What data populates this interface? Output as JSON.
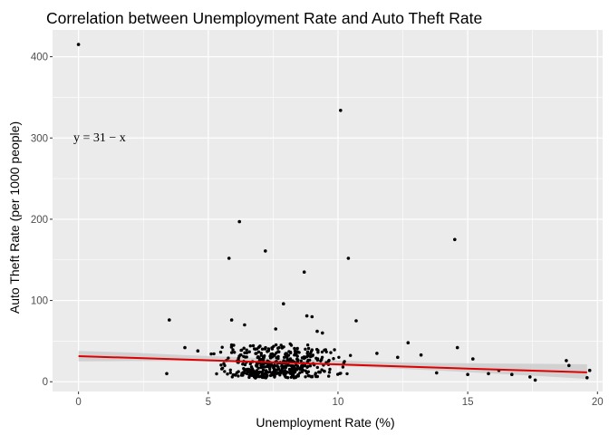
{
  "chart_data": {
    "type": "scatter",
    "title": "Correlation between Unemployment Rate and Auto Theft Rate",
    "xlabel": "Unemployment Rate (%)",
    "ylabel": "Auto Theft Rate (per 1000 people)",
    "xlim": [
      -1,
      20.2
    ],
    "ylim": [
      -12,
      433
    ],
    "x_ticks": [
      0,
      5,
      10,
      15,
      20
    ],
    "y_ticks": [
      0,
      100,
      200,
      300,
      400
    ],
    "x_tick_labels": [
      "0",
      "5",
      "10",
      "15",
      "20"
    ],
    "y_tick_labels": [
      "0",
      "100",
      "200",
      "300",
      "400"
    ],
    "grid": true,
    "background_color": "#ebebeb",
    "point_color": "#000000",
    "fit_color": "#dd0000",
    "ribbon_color": "#cccccc",
    "annotation": {
      "text": "y = 31 − x",
      "x": 0,
      "y": 300
    },
    "fit": {
      "x": [
        0,
        19.6
      ],
      "y": [
        31.5,
        11.5
      ]
    },
    "ribbon": {
      "x": [
        0,
        2,
        4,
        6,
        8,
        10,
        12,
        14,
        16,
        18,
        19.6
      ],
      "lower": [
        25,
        25.5,
        25.5,
        24.5,
        22.5,
        19.5,
        16.5,
        13.5,
        10,
        6.5,
        3.5
      ],
      "upper": [
        38,
        36,
        33,
        30.5,
        28,
        26,
        24,
        23,
        22.5,
        22,
        21.5
      ]
    },
    "outliers": [
      {
        "x": 0,
        "y": 415
      },
      {
        "x": 10.1,
        "y": 334
      },
      {
        "x": 6.2,
        "y": 197
      },
      {
        "x": 14.5,
        "y": 175
      },
      {
        "x": 7.2,
        "y": 161
      },
      {
        "x": 10.4,
        "y": 152
      },
      {
        "x": 5.8,
        "y": 152
      },
      {
        "x": 8.7,
        "y": 135
      },
      {
        "x": 7.9,
        "y": 96
      },
      {
        "x": 8.8,
        "y": 81
      },
      {
        "x": 9.0,
        "y": 80
      },
      {
        "x": 3.5,
        "y": 76
      },
      {
        "x": 5.9,
        "y": 76
      },
      {
        "x": 10.7,
        "y": 75
      },
      {
        "x": 6.4,
        "y": 70
      },
      {
        "x": 7.6,
        "y": 65
      },
      {
        "x": 9.4,
        "y": 60
      },
      {
        "x": 9.2,
        "y": 62
      },
      {
        "x": 14.6,
        "y": 42
      },
      {
        "x": 12.7,
        "y": 48
      },
      {
        "x": 18.8,
        "y": 26
      },
      {
        "x": 18.9,
        "y": 20
      },
      {
        "x": 19.6,
        "y": 5
      },
      {
        "x": 19.7,
        "y": 14
      },
      {
        "x": 17.6,
        "y": 2
      },
      {
        "x": 16.7,
        "y": 9
      },
      {
        "x": 17.4,
        "y": 6
      },
      {
        "x": 15.2,
        "y": 28
      },
      {
        "x": 12.3,
        "y": 30
      },
      {
        "x": 11.5,
        "y": 35
      },
      {
        "x": 13.2,
        "y": 33
      },
      {
        "x": 4.1,
        "y": 42
      },
      {
        "x": 4.6,
        "y": 38
      },
      {
        "x": 15.8,
        "y": 10
      },
      {
        "x": 16.2,
        "y": 14
      },
      {
        "x": 15.0,
        "y": 9
      },
      {
        "x": 13.8,
        "y": 11
      },
      {
        "x": 3.4,
        "y": 10
      }
    ],
    "cluster": {
      "count": 430,
      "x_range": [
        3.6,
        13.5
      ],
      "x_center": 7.8,
      "x_spread": 2.0,
      "y_typical": [
        8,
        45
      ],
      "seed": 7
    }
  }
}
